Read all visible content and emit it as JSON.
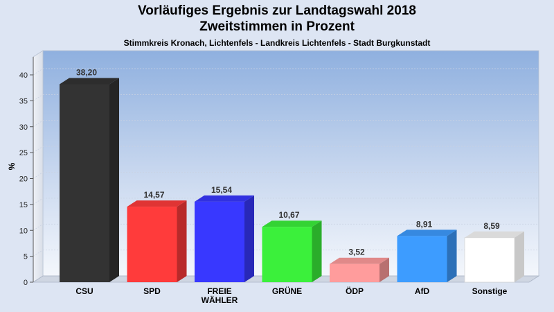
{
  "title": "Vorläufiges Ergebnis zur Landtagswahl 2018",
  "subtitle": "Zweitstimmen in Prozent",
  "subsubtitle": "Stimmkreis Kronach, Lichtenfels - Landkreis Lichtenfels - Stadt Burgkunstadt",
  "chart_data": {
    "type": "bar",
    "ylabel": "%",
    "ylim": [
      0,
      40
    ],
    "yticks": [
      0,
      5,
      10,
      15,
      20,
      25,
      30,
      35,
      40
    ],
    "grid": true,
    "categories": [
      {
        "lines": [
          "CSU"
        ]
      },
      {
        "lines": [
          "SPD"
        ]
      },
      {
        "lines": [
          "FREIE",
          "WÄHLER"
        ]
      },
      {
        "lines": [
          "GRÜNE"
        ]
      },
      {
        "lines": [
          "ÖDP"
        ]
      },
      {
        "lines": [
          "AfD"
        ]
      },
      {
        "lines": [
          "Sonstige"
        ]
      }
    ],
    "values": [
      38.2,
      14.57,
      15.54,
      10.67,
      3.52,
      8.91,
      8.59
    ],
    "value_labels": [
      "38,20",
      "14,57",
      "15,54",
      "10,67",
      "3,52",
      "8,91",
      "8,59"
    ],
    "colors": [
      "#333333",
      "#ff3b3b",
      "#3838ff",
      "#3bf03b",
      "#ff9c9c",
      "#3d9cff",
      "#ffffff"
    ]
  }
}
